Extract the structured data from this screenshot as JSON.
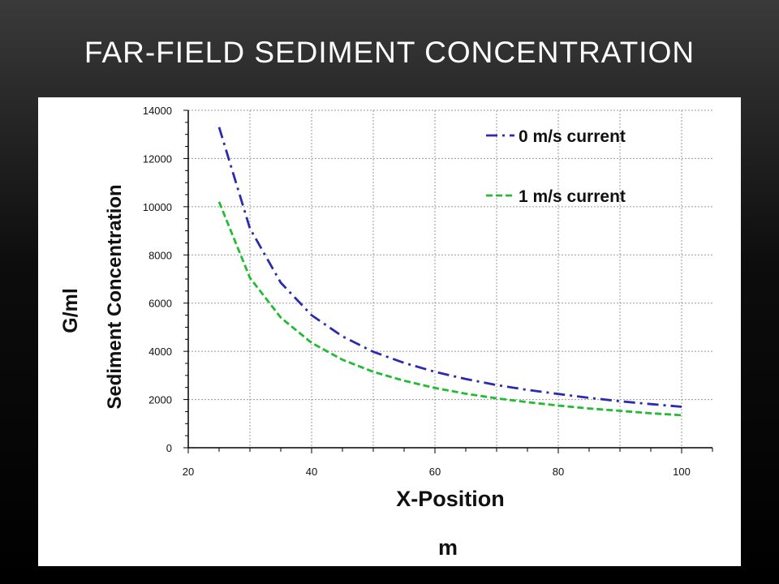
{
  "slide": {
    "title": "Far-Field Sediment Concentration"
  },
  "chart_data": {
    "type": "line",
    "x_label": "X-Position",
    "x_unit": "m",
    "y_label": "Sediment Concentration",
    "y_unit": "G/ml",
    "xlim": [
      20,
      105
    ],
    "ylim": [
      0,
      14000
    ],
    "x_ticks": [
      20,
      40,
      60,
      80,
      100
    ],
    "y_ticks": [
      0,
      2000,
      4000,
      6000,
      8000,
      10000,
      12000,
      14000
    ],
    "grid": true,
    "legend_position": "top-right",
    "series": [
      {
        "name": "0 m/s current",
        "color": "#2b2bb0",
        "dash": "dash-dot",
        "x": [
          25,
          30,
          35,
          40,
          45,
          50,
          55,
          60,
          65,
          70,
          75,
          80,
          85,
          90,
          95,
          100
        ],
        "y": [
          13300,
          9100,
          6850,
          5500,
          4620,
          3980,
          3520,
          3150,
          2850,
          2600,
          2400,
          2230,
          2070,
          1930,
          1810,
          1700
        ]
      },
      {
        "name": "1 m/s current",
        "color": "#22bb33",
        "dash": "dashed",
        "x": [
          25,
          30,
          35,
          40,
          45,
          50,
          55,
          60,
          65,
          70,
          75,
          80,
          85,
          90,
          95,
          100
        ],
        "y": [
          10200,
          7050,
          5400,
          4350,
          3650,
          3150,
          2780,
          2480,
          2240,
          2050,
          1890,
          1750,
          1630,
          1530,
          1430,
          1350
        ]
      }
    ]
  }
}
